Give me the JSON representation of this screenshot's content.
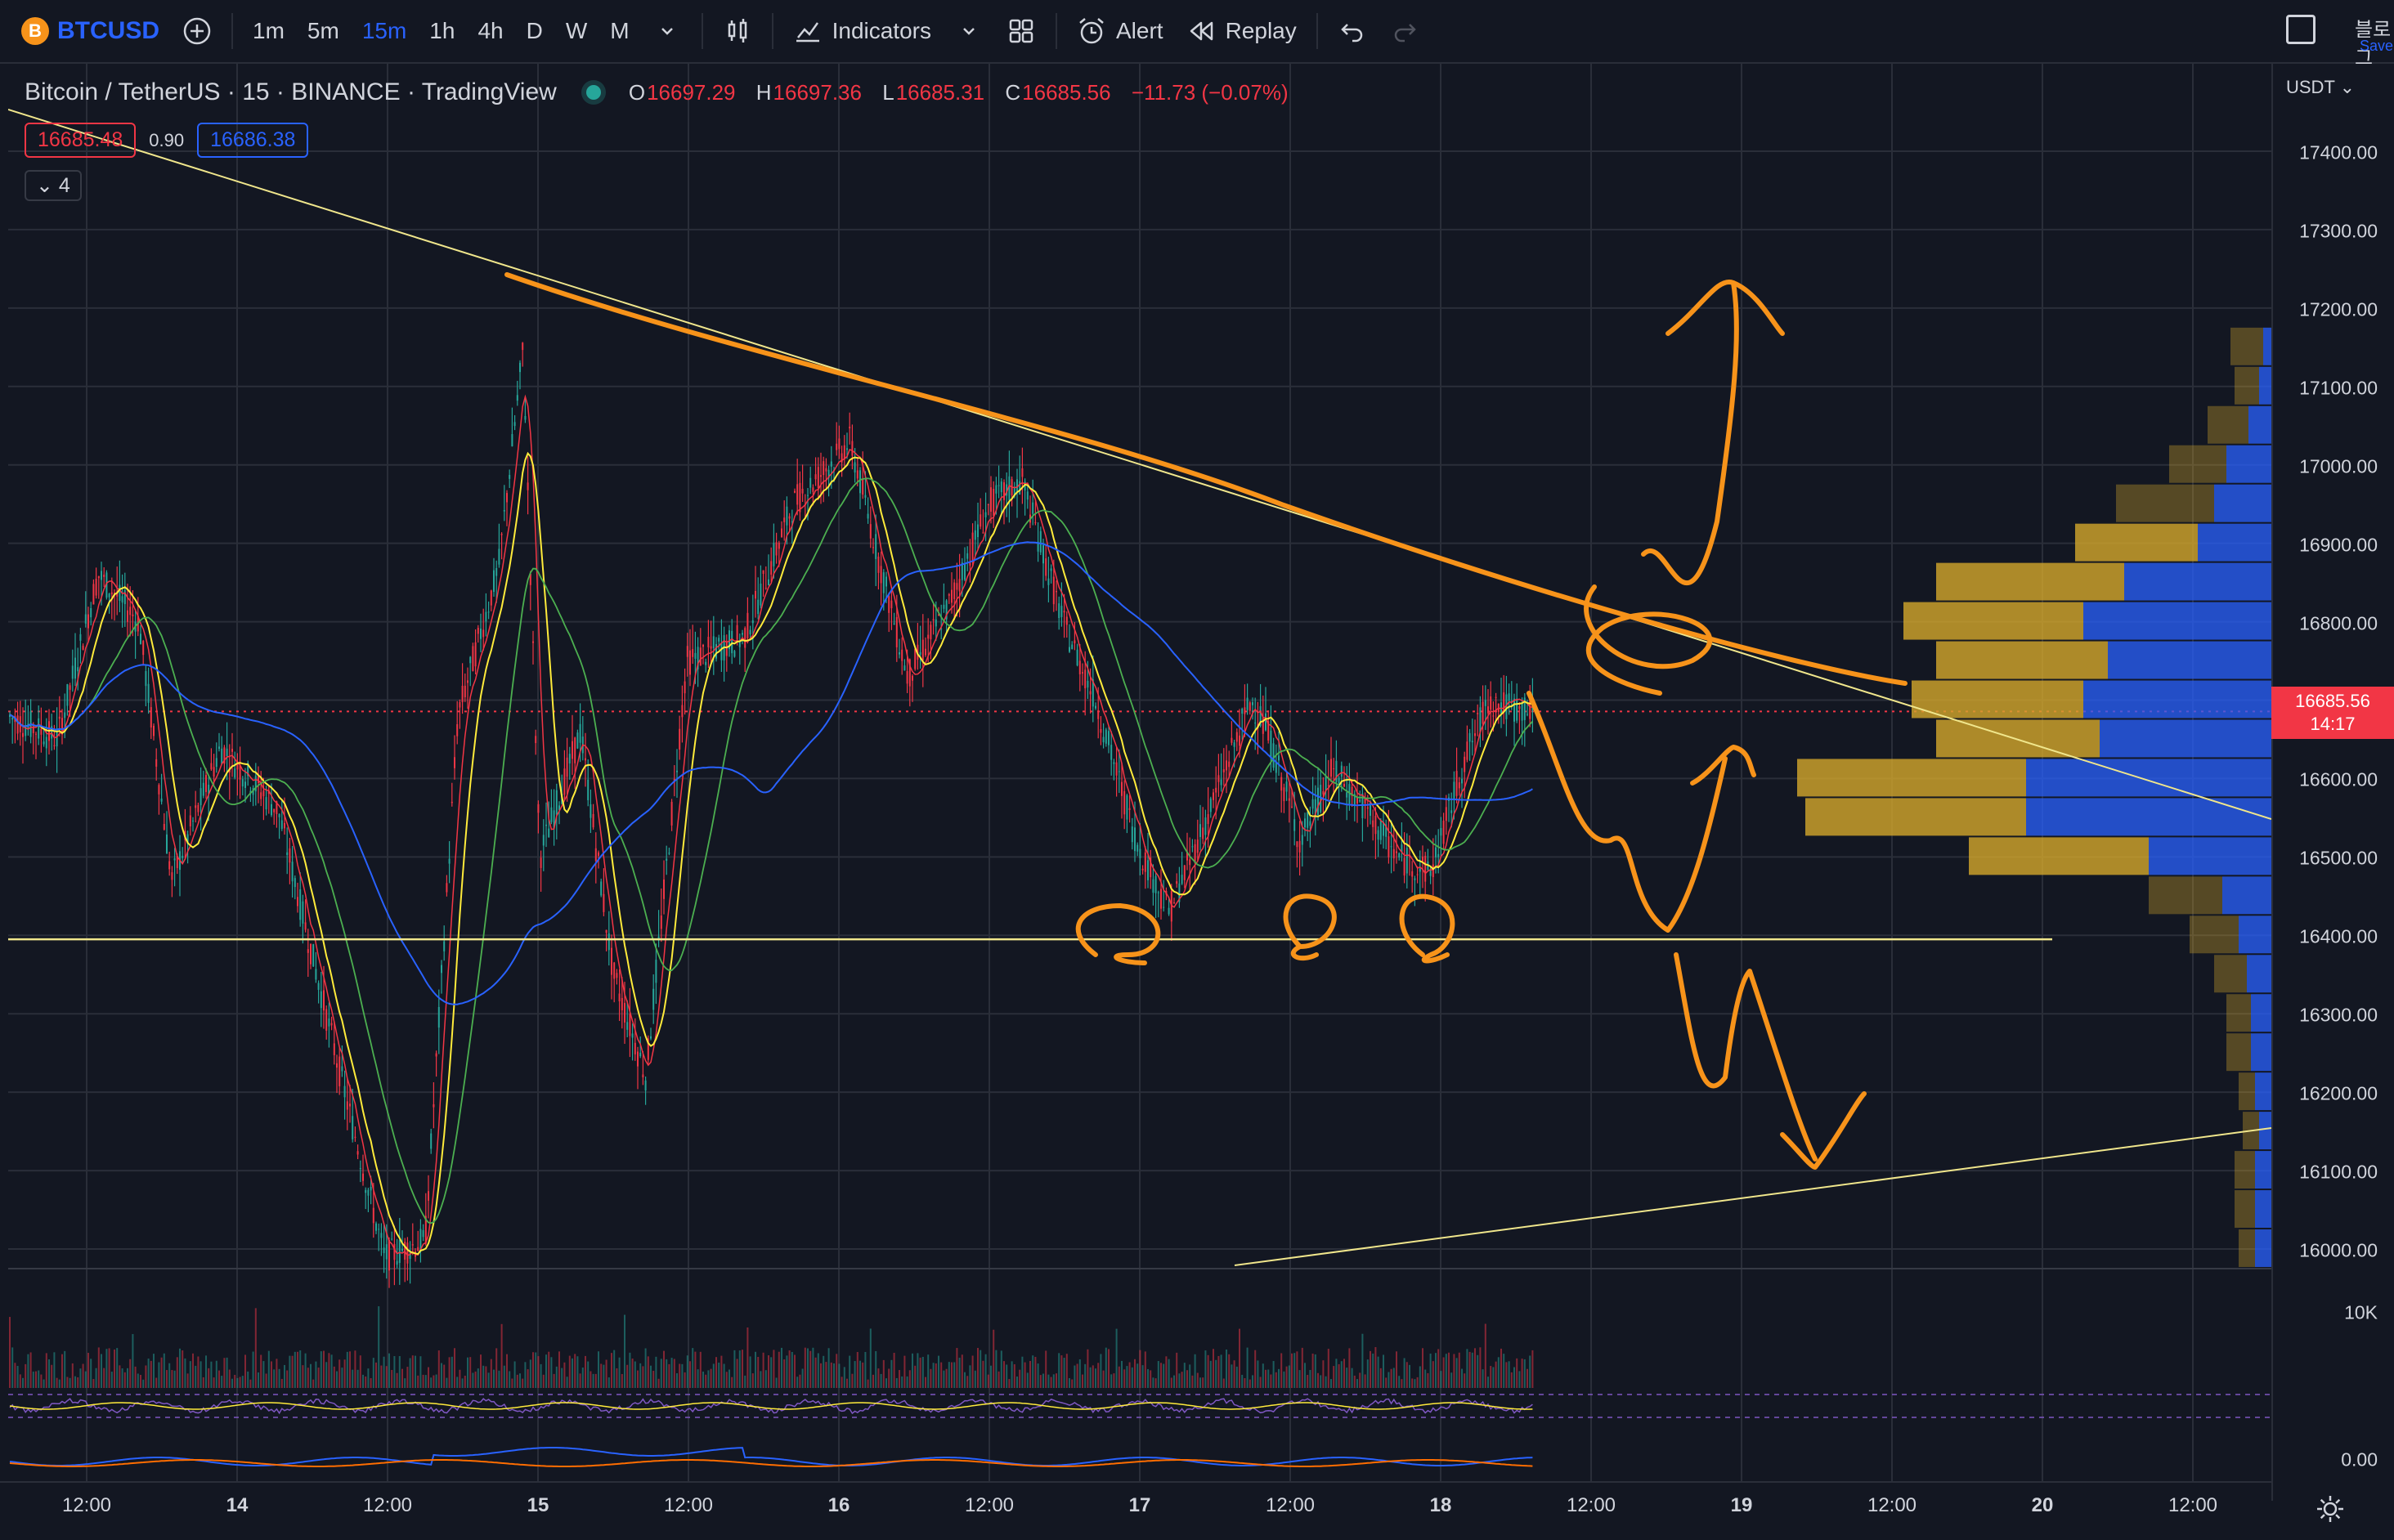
{
  "toolbar": {
    "symbol": "BTCUSD",
    "symbol_icon": "B",
    "timeframes": [
      "1m",
      "5m",
      "15m",
      "1h",
      "4h",
      "D",
      "W",
      "M"
    ],
    "active_timeframe": "15m",
    "indicators_label": "Indicators",
    "alert_label": "Alert",
    "replay_label": "Replay",
    "right_label": "블로그",
    "right_sublabel": "Save"
  },
  "legend": {
    "title": "Bitcoin / TetherUS · 15 · BINANCE · TradingView",
    "open_key": "O",
    "open": "16697.29",
    "high_key": "H",
    "high": "16697.36",
    "low_key": "L",
    "low": "16685.31",
    "close_key": "C",
    "close": "16685.56",
    "change": "−11.73 (−0.07%)",
    "bid": "16685.48",
    "spread": "0.90",
    "ask": "16686.38",
    "collapsed_count": "4"
  },
  "price_axis": {
    "currency": "USDT",
    "labels": [
      "17400.00",
      "17300.00",
      "17200.00",
      "17100.00",
      "17000.00",
      "16900.00",
      "16800.00",
      "16700.00",
      "16600.00",
      "16500.00",
      "16400.00",
      "16300.00",
      "16200.00",
      "16100.00",
      "16000.00"
    ],
    "volume_label": "10K",
    "osc_label": "0.00",
    "last_price": "16685.56",
    "countdown": "14:17"
  },
  "time_axis": {
    "labels": [
      "12:00",
      "14",
      "12:00",
      "15",
      "12:00",
      "16",
      "12:00",
      "17",
      "12:00",
      "18",
      "12:00",
      "19",
      "12:00",
      "20",
      "12:00"
    ]
  },
  "colors": {
    "background": "#131722",
    "up": "#26a69a",
    "down": "#f23645",
    "accent": "#2962ff",
    "trendline": "#f0e68c",
    "annotation": "#f7931a"
  },
  "icons": {
    "add": "plus-circle-icon",
    "chart_type": "candles-icon",
    "indicators": "indicators-icon",
    "layout": "grid-layout-icon",
    "alert": "alarm-clock-icon",
    "replay": "rewind-icon",
    "undo": "undo-icon",
    "redo": "redo-icon",
    "settings": "gear-icon"
  }
}
